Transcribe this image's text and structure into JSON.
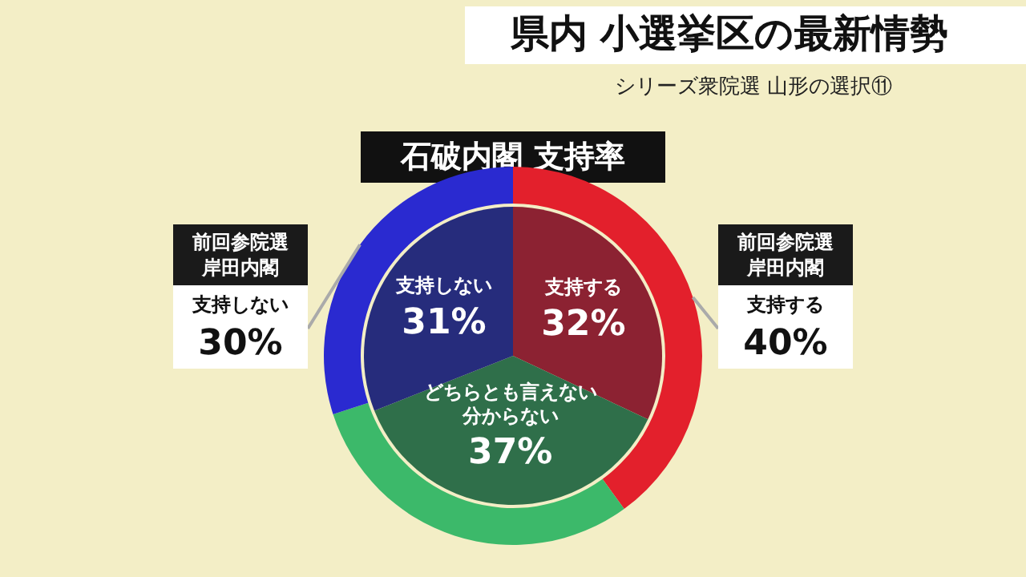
{
  "chart_data": {
    "type": "donut",
    "title": "石破内閣 支持率",
    "annotations": [
      "県内 小選挙区の最新情勢",
      "シリーズ衆院選 山形の選択⑪"
    ],
    "categories": [
      "支持する",
      "どちらとも言えない分からない",
      "支持しない"
    ],
    "series": [
      {
        "name": "前回参院選岸田内閣",
        "values": [
          40,
          30,
          30
        ],
        "colors": [
          "#e3202c",
          "#3cb96a",
          "#2a2ad0"
        ],
        "value_labels": [
          "40%",
          null,
          "30%"
        ]
      },
      {
        "type": "pie",
        "values": [
          32,
          37,
          31
        ],
        "colors": [
          "#8c2232",
          "#2f6f4a",
          "#262c7c"
        ],
        "value_labels": [
          "32%",
          "37%",
          "31%"
        ]
      }
    ]
  }
}
